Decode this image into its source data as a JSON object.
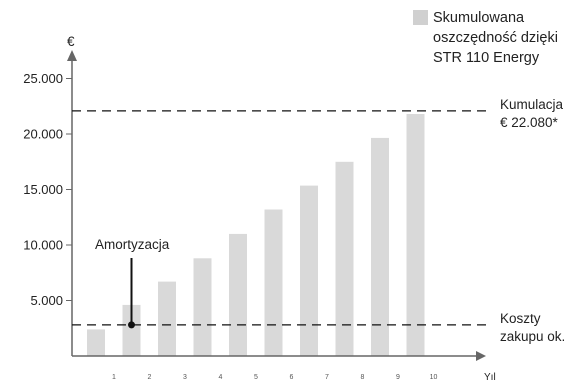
{
  "chart_data": {
    "type": "bar",
    "categories": [
      "1",
      "2",
      "3",
      "4",
      "5",
      "6",
      "7",
      "8",
      "9",
      "10"
    ],
    "series": [
      {
        "name": "Skumulowana oszczędność dzięki STR 110 Energy",
        "values": [
          2400,
          4600,
          6700,
          8800,
          11000,
          13200,
          15350,
          17500,
          19650,
          21800
        ]
      }
    ],
    "ylim": [
      0,
      26000
    ],
    "yticks": [
      5000,
      10000,
      15000,
      20000,
      25000
    ],
    "ytick_labels": [
      "5.000",
      "10.000",
      "15.000",
      "20.000",
      "25.000"
    ],
    "ylabel": "€",
    "xlabel": "Yıl",
    "bar_color": "#d9d9d9",
    "reference_lines": [
      {
        "value": 22080,
        "label_lines": [
          "Kumulacja",
          "€ 22.080*"
        ]
      },
      {
        "value": 2800,
        "label_lines": [
          "Koszty",
          "zakupu ok."
        ]
      }
    ],
    "annotation": {
      "label": "Amortyzacja",
      "category_index": 1,
      "value": 2800
    },
    "legend": {
      "position": "top-right",
      "label_lines": [
        "Skumulowana",
        "oszczędność dzięki",
        "STR 110 Energy"
      ]
    }
  }
}
